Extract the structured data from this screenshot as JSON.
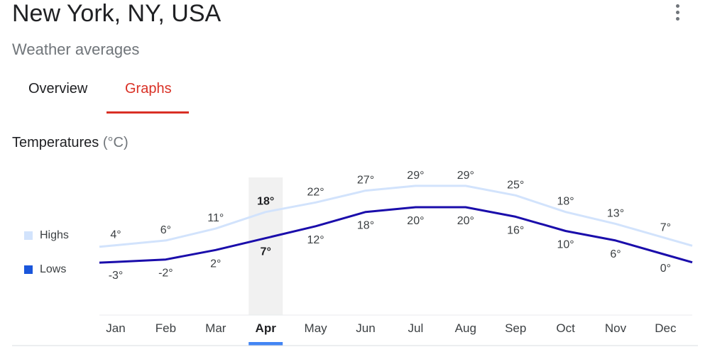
{
  "header": {
    "title": "New York, NY, USA",
    "subtitle": "Weather averages",
    "menu_icon": "more-vert-icon"
  },
  "tabs": [
    {
      "label": "Overview",
      "selected": false
    },
    {
      "label": "Graphs",
      "selected": true
    }
  ],
  "section": {
    "title": "Temperatures",
    "unit": "(°C)"
  },
  "legend": {
    "highs": "Highs",
    "lows": "Lows"
  },
  "colors": {
    "highs": "#d2e3fc",
    "lows": "#1a0dab",
    "lows_swatch": "#1a56db",
    "tab_active": "#d93025",
    "selected_month_bar": "#4285f4",
    "selected_month_band": "#f1f1f1"
  },
  "chart_data": {
    "type": "line",
    "categories": [
      "Jan",
      "Feb",
      "Mar",
      "Apr",
      "May",
      "Jun",
      "Jul",
      "Aug",
      "Sep",
      "Oct",
      "Nov",
      "Dec"
    ],
    "selected_index": 3,
    "series": [
      {
        "name": "Highs",
        "values": [
          4,
          6,
          11,
          18,
          22,
          27,
          29,
          29,
          25,
          18,
          13,
          7
        ],
        "labels": [
          "4°",
          "6°",
          "11°",
          "18°",
          "22°",
          "27°",
          "29°",
          "29°",
          "25°",
          "18°",
          "13°",
          "7°"
        ]
      },
      {
        "name": "Lows",
        "values": [
          -3,
          -2,
          2,
          7,
          12,
          18,
          20,
          20,
          16,
          10,
          6,
          0
        ],
        "labels": [
          "-3°",
          "-2°",
          "2°",
          "7°",
          "12°",
          "18°",
          "20°",
          "20°",
          "16°",
          "10°",
          "6°",
          "0°"
        ]
      }
    ],
    "legend_position": "left"
  }
}
